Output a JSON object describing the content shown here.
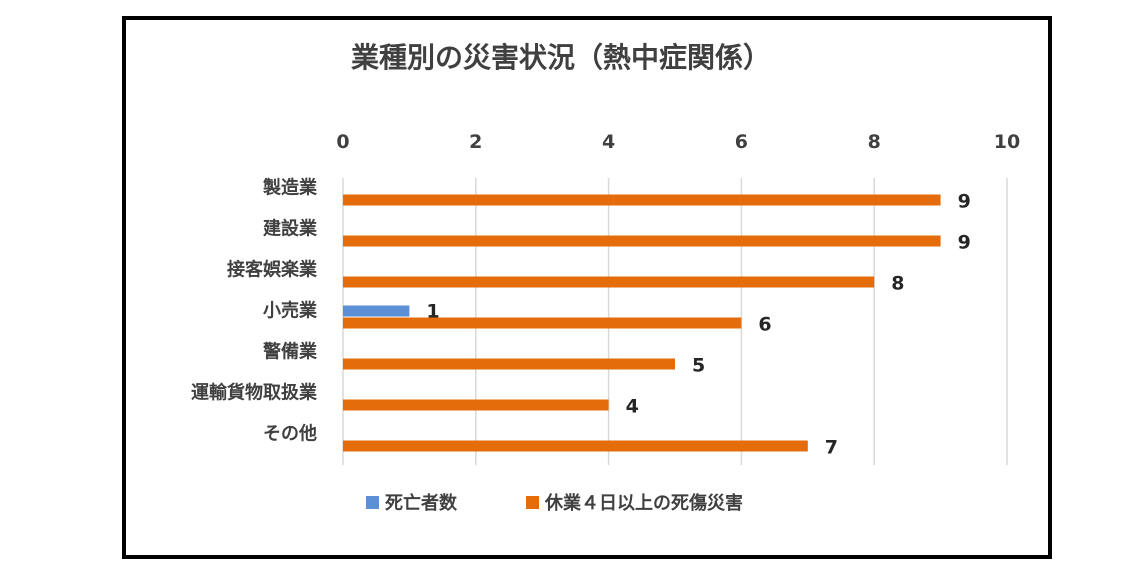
{
  "chart_data": {
    "type": "bar",
    "orientation": "horizontal",
    "title": "業種別の災害状況（熱中症関係）",
    "xlabel": "",
    "ylabel": "",
    "xlim": [
      0,
      10
    ],
    "x_ticks": [
      "0",
      "2",
      "4",
      "6",
      "8",
      "10"
    ],
    "x_axis_position": "top",
    "grid": true,
    "legend_position": "bottom",
    "categories": [
      "製造業",
      "建設業",
      "接客娯楽業",
      "小売業",
      "警備業",
      "運輸貨物取扱業",
      "その他"
    ],
    "series": [
      {
        "name": "死亡者数",
        "color": "#5b8fd6",
        "values": [
          null,
          null,
          null,
          1,
          null,
          null,
          null
        ]
      },
      {
        "name": "休業４日以上の死傷災害",
        "color": "#e46c0a",
        "values": [
          9,
          9,
          8,
          6,
          5,
          4,
          7
        ]
      }
    ]
  }
}
